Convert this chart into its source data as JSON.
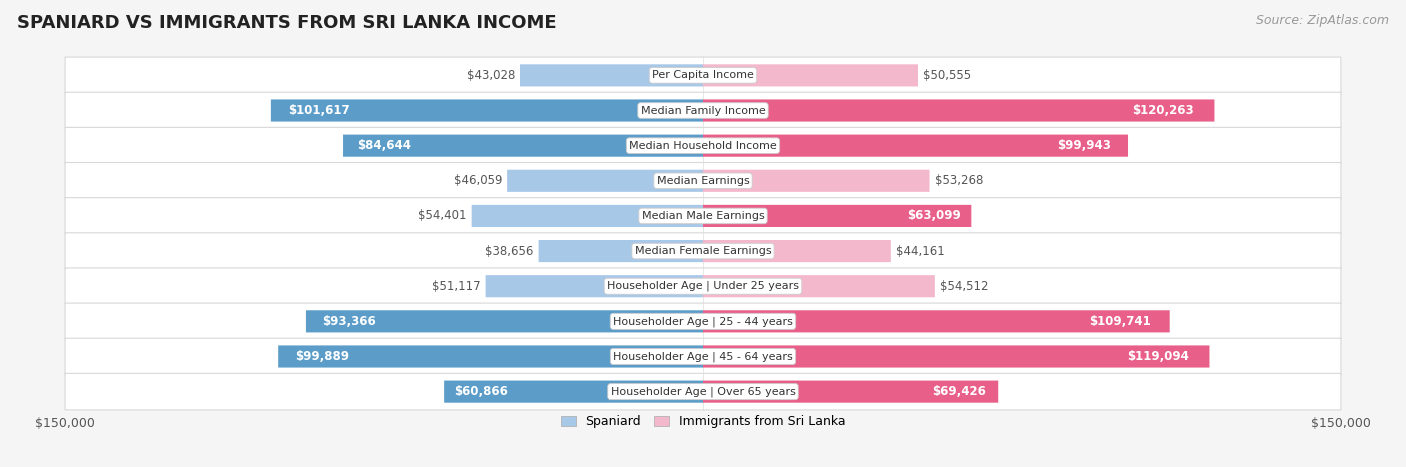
{
  "title": "SPANIARD VS IMMIGRANTS FROM SRI LANKA INCOME",
  "source": "Source: ZipAtlas.com",
  "categories": [
    "Per Capita Income",
    "Median Family Income",
    "Median Household Income",
    "Median Earnings",
    "Median Male Earnings",
    "Median Female Earnings",
    "Householder Age | Under 25 years",
    "Householder Age | 25 - 44 years",
    "Householder Age | 45 - 64 years",
    "Householder Age | Over 65 years"
  ],
  "spaniard_values": [
    43028,
    101617,
    84644,
    46059,
    54401,
    38656,
    51117,
    93366,
    99889,
    60866
  ],
  "immigrant_values": [
    50555,
    120263,
    99943,
    53268,
    63099,
    44161,
    54512,
    109741,
    119094,
    69426
  ],
  "spaniard_labels": [
    "$43,028",
    "$101,617",
    "$84,644",
    "$46,059",
    "$54,401",
    "$38,656",
    "$51,117",
    "$93,366",
    "$99,889",
    "$60,866"
  ],
  "immigrant_labels": [
    "$50,555",
    "$120,263",
    "$99,943",
    "$53,268",
    "$63,099",
    "$44,161",
    "$54,512",
    "$109,741",
    "$119,094",
    "$69,426"
  ],
  "max_val": 150000,
  "spaniard_color_light": "#a8c8e8",
  "spaniard_color_dark": "#5b9dc8",
  "immigrant_color_light": "#f4b8cc",
  "immigrant_color_dark": "#e8608a",
  "white_label_threshold": 60000,
  "background_color": "#f5f5f5",
  "row_color_odd": "#f0f0f0",
  "row_color_even": "#fafafa",
  "bar_height": 0.62,
  "label_fontsize": 8.5,
  "title_fontsize": 13,
  "source_fontsize": 9
}
